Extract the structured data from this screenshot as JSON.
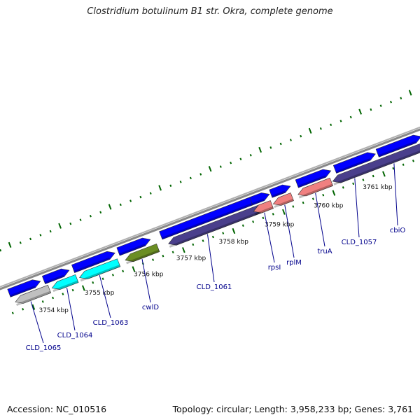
{
  "title": "Clostridium botulinum B1 str. Okra, complete genome",
  "footer": {
    "accession": "Accession: NC_010516",
    "topology": "Topology: circular; Length: 3,958,233 bp; Genes: 3,761"
  },
  "colors": {
    "blue": "#0000ff",
    "cyan": "#00ffff",
    "gray": "#c0c0c0",
    "olive": "#6b8e23",
    "navy": "#4a3f8c",
    "pink": "#f08080",
    "backbone": "#888888",
    "tick": "#006400",
    "label": "#00008b"
  },
  "scale_labels": [
    "3754 kbp",
    "3755 kbp",
    "3756 kbp",
    "3757 kbp",
    "3758 kbp",
    "3759 kbp",
    "3760 kbp",
    "3761 kbp"
  ],
  "gene_labels": [
    "CLD_1065",
    "CLD_1064",
    "CLD_1063",
    "cwlD",
    "CLD_1061",
    "rpsI",
    "rplM",
    "truA",
    "CLD_1057",
    "cbiO"
  ],
  "features": {
    "forward": [
      "blue",
      "blue",
      "blue",
      "blue",
      "blue",
      "blue",
      "blue",
      "blue",
      "blue",
      "blue"
    ],
    "reverse": [
      "gray",
      "cyan",
      "cyan",
      "olive",
      "navy",
      "pink",
      "pink",
      "pink",
      "navy"
    ]
  }
}
